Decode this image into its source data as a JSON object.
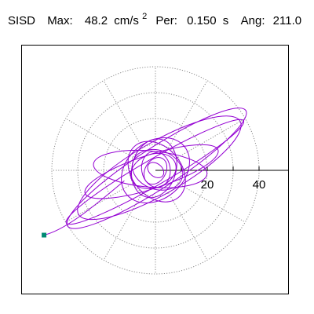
{
  "header": {
    "component": "SISD",
    "max_label": "Max:",
    "max_value": "48.2",
    "max_unit": "cm/s",
    "max_unit_exp": "2",
    "per_label": "Per:",
    "per_value": "0.150",
    "per_unit": "s",
    "ang_label": "Ang:",
    "ang_value": "211.0"
  },
  "colors": {
    "trace": "#9400d3",
    "marker": "#008b74",
    "grid": "#8a8a8a",
    "axis": "#000000",
    "background": "#ffffff"
  },
  "chart_data": {
    "type": "polar-orbit",
    "title": "",
    "xlabel": "",
    "ylabel": "",
    "rings": [
      10,
      20,
      30,
      40
    ],
    "radial_divisions": 12,
    "tick_labels": [
      "20",
      "40"
    ],
    "axis_directions": [
      "+x"
    ],
    "end_marker": {
      "x": -43.0,
      "y": -25.0
    },
    "trace_lobes": [
      {
        "rx": 41.0,
        "ry": 7.8,
        "angle": 33.0,
        "cx": 0.5,
        "cy": 0.8
      },
      {
        "rx": 39.5,
        "ry": 5.0,
        "angle": 210.0,
        "cx": -0.2,
        "cy": -0.6
      },
      {
        "rx": 36.0,
        "ry": 10.0,
        "angle": 30.0,
        "cx": 1.5,
        "cy": 1.0
      },
      {
        "rx": 27.0,
        "ry": 6.5,
        "angle": 18.0,
        "cx": -1.5,
        "cy": -0.5
      },
      {
        "rx": 22.0,
        "ry": 7.0,
        "angle": 175.0,
        "cx": -2.0,
        "cy": 0.5
      },
      {
        "rx": 14.5,
        "ry": 11.0,
        "angle": 40.0,
        "cx": 0.0,
        "cy": 0.0
      },
      {
        "rx": 13.0,
        "ry": 9.5,
        "angle": 130.0,
        "cx": 0.5,
        "cy": -0.5
      },
      {
        "rx": 11.5,
        "ry": 8.5,
        "angle": 75.0,
        "cx": -0.5,
        "cy": 0.8
      },
      {
        "rx": 10.0,
        "ry": 7.5,
        "angle": 160.0,
        "cx": 0.8,
        "cy": 0.2
      },
      {
        "rx": 9.0,
        "ry": 6.5,
        "angle": 20.0,
        "cx": -0.8,
        "cy": -0.3
      },
      {
        "rx": 7.0,
        "ry": 5.5,
        "angle": 100.0,
        "cx": 0.2,
        "cy": 0.4
      },
      {
        "rx": 5.5,
        "ry": 4.0,
        "angle": 60.0,
        "cx": 0.0,
        "cy": -0.2
      },
      {
        "rx": 3.5,
        "ry": 2.5,
        "angle": 140.0,
        "cx": 0.1,
        "cy": 0.1
      }
    ]
  }
}
